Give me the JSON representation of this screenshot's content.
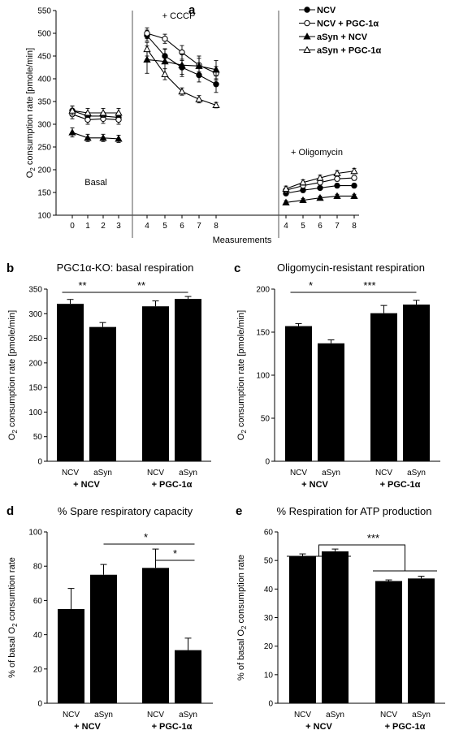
{
  "chart_data": [
    {
      "panel": "a",
      "type": "line",
      "ylabel_main": "O",
      "ylabel_sub": "2",
      "ylabel_rest": " consumption rate [pmole/min]",
      "xlabel": "Measurements",
      "ylim": [
        100,
        550
      ],
      "yticks": [
        100,
        150,
        200,
        250,
        300,
        350,
        400,
        450,
        500,
        550
      ],
      "phases": [
        {
          "label": "Basal",
          "x": [
            "0",
            "1",
            "2",
            "3"
          ]
        },
        {
          "label": "+ CCCP",
          "x": [
            "4",
            "5",
            "6",
            "7",
            "8"
          ]
        },
        {
          "label": "+ Oligomycin",
          "x": [
            "4",
            "5",
            "6",
            "7",
            "8"
          ]
        }
      ],
      "series": [
        {
          "name": "NCV",
          "marker": "filled-circle",
          "values": [
            [
              330,
              318,
              318,
              315
            ],
            [
              495,
              450,
              425,
              408,
              388
            ],
            [
              148,
              155,
              160,
              165,
              165
            ]
          ],
          "errors": [
            [
              10,
              8,
              8,
              8
            ],
            [
              12,
              15,
              15,
              15,
              18
            ],
            [
              4,
              4,
              4,
              4,
              4
            ]
          ]
        },
        {
          "name": "NCV + PGC-1α",
          "marker": "open-circle",
          "values": [
            [
              322,
              310,
              312,
              310
            ],
            [
              500,
              488,
              458,
              430,
              412
            ],
            [
              155,
              165,
              172,
              180,
              182
            ]
          ],
          "errors": [
            [
              10,
              10,
              10,
              10
            ],
            [
              12,
              10,
              15,
              15,
              15
            ],
            [
              5,
              5,
              5,
              5,
              5
            ]
          ]
        },
        {
          "name": "aSyn + NCV",
          "marker": "filled-triangle",
          "values": [
            [
              282,
              270,
              270,
              268
            ],
            [
              442,
              438,
              430,
              428,
              420
            ],
            [
              128,
              133,
              138,
              142,
              142
            ]
          ],
          "errors": [
            [
              10,
              8,
              8,
              8
            ],
            [
              30,
              28,
              25,
              22,
              20
            ],
            [
              4,
              4,
              4,
              4,
              4
            ]
          ]
        },
        {
          "name": "aSyn + PGC-1α",
          "marker": "open-triangle",
          "values": [
            [
              330,
              325,
              325,
              325
            ],
            [
              465,
              410,
              372,
              355,
              342
            ],
            [
              158,
              172,
              182,
              192,
              197
            ]
          ],
          "errors": [
            [
              10,
              10,
              10,
              10
            ],
            [
              15,
              12,
              8,
              8,
              6
            ],
            [
              6,
              6,
              6,
              6,
              6
            ]
          ]
        }
      ]
    },
    {
      "panel": "b",
      "type": "bar",
      "title": "PGC1α-KO: basal respiration",
      "ylabel_main": "O",
      "ylabel_sub": "2",
      "ylabel_rest": " consumption rate [pmole/min]",
      "ylim": [
        0,
        350
      ],
      "yticks": [
        0,
        50,
        100,
        150,
        200,
        250,
        300,
        350
      ],
      "categories": [
        "NCV",
        "aSyn",
        "NCV",
        "aSyn"
      ],
      "groups": [
        "+ NCV",
        "+ PGC-1α"
      ],
      "values": [
        320,
        273,
        315,
        330
      ],
      "errors": [
        9,
        9,
        11,
        5
      ],
      "significance": [
        {
          "from": 0,
          "to": 1,
          "label": "**"
        },
        {
          "from": 1,
          "to": 3,
          "label": "**"
        }
      ]
    },
    {
      "panel": "c",
      "type": "bar",
      "title": "Oligomycin-resistant respiration",
      "ylabel_main": "O",
      "ylabel_sub": "2",
      "ylabel_rest": " consumption rate [pmole/min]",
      "ylim": [
        0,
        200
      ],
      "yticks": [
        0,
        50,
        100,
        150,
        200
      ],
      "categories": [
        "NCV",
        "aSyn",
        "NCV",
        "aSyn"
      ],
      "groups": [
        "+ NCV",
        "+ PGC-1α"
      ],
      "values": [
        157,
        137,
        172,
        182
      ],
      "errors": [
        3,
        4,
        9,
        5
      ],
      "significance": [
        {
          "from": 0,
          "to": 1,
          "label": "*"
        },
        {
          "from": 1,
          "to": 3,
          "label": "***"
        }
      ]
    },
    {
      "panel": "d",
      "type": "bar",
      "title": "% Spare respiratory capacity",
      "ylabel_main": "% of basal O",
      "ylabel_sub": "2",
      "ylabel_rest": " consumtion rate",
      "ylim": [
        0,
        100
      ],
      "yticks": [
        0,
        20,
        40,
        60,
        80,
        100
      ],
      "categories": [
        "NCV",
        "aSyn",
        "NCV",
        "aSyn"
      ],
      "groups": [
        "+ NCV",
        "+ PGC-1α"
      ],
      "values": [
        55,
        75,
        79,
        31
      ],
      "errors": [
        12,
        6,
        11,
        7
      ],
      "significance": [
        {
          "from": 1,
          "to": 3,
          "label": "*"
        },
        {
          "from": 2,
          "to": 3,
          "label": "*"
        }
      ]
    },
    {
      "panel": "e",
      "type": "bar",
      "title": "% Respiration for ATP production",
      "ylabel_main": "% of basal O",
      "ylabel_sub": "2",
      "ylabel_rest": " consumption rate",
      "ylim": [
        0,
        60
      ],
      "yticks": [
        0,
        10,
        20,
        30,
        40,
        50,
        60
      ],
      "categories": [
        "NCV",
        "aSyn",
        "NCV",
        "aSyn"
      ],
      "groups": [
        "+ NCV",
        "+ PGC-1α"
      ],
      "values": [
        51.5,
        53.2,
        42.8,
        43.7
      ],
      "errors": [
        0.8,
        0.8,
        0.4,
        0.8
      ],
      "significance": [
        {
          "groupwise": true,
          "label": "***"
        }
      ]
    }
  ]
}
